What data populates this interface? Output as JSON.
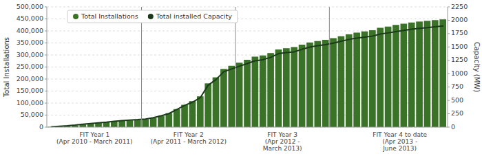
{
  "chart_data": {
    "type": "bar",
    "categories": [
      null,
      null,
      null,
      null,
      null,
      null,
      null,
      null,
      null,
      null,
      null,
      null,
      null,
      null,
      null,
      null,
      null,
      null,
      null,
      null,
      null,
      null,
      null,
      null,
      null,
      null,
      null,
      null,
      null,
      null,
      null,
      null,
      null,
      null,
      null,
      null,
      null,
      null,
      null,
      null,
      null,
      null,
      null,
      null,
      null,
      null,
      null,
      null,
      null,
      null,
      null
    ],
    "series": [
      {
        "name": "Total Installations",
        "type": "bar",
        "color": "#3a7228",
        "values": [
          1500,
          3000,
          5000,
          7500,
          11000,
          14000,
          17000,
          20000,
          23000,
          26000,
          28000,
          30000,
          33000,
          39000,
          47000,
          58000,
          75000,
          93000,
          108000,
          128000,
          182000,
          207000,
          242000,
          255000,
          268000,
          280000,
          293000,
          298000,
          308000,
          323000,
          328000,
          333000,
          343000,
          352000,
          358000,
          363000,
          370000,
          378000,
          386000,
          393000,
          398000,
          403000,
          413000,
          418000,
          425000,
          430000,
          435000,
          439000,
          442000,
          445000,
          448000
        ]
      },
      {
        "name": "Total installed Capacity",
        "type": "line",
        "color": "#1a3a1a",
        "axis": "y2",
        "values": [
          8,
          16,
          25,
          38,
          55,
          68,
          80,
          93,
          110,
          123,
          132,
          140,
          152,
          178,
          212,
          254,
          330,
          406,
          466,
          550,
          783,
          889,
          1036,
          1088,
          1139,
          1190,
          1240,
          1261,
          1307,
          1375,
          1395,
          1409,
          1455,
          1497,
          1523,
          1544,
          1573,
          1608,
          1641,
          1666,
          1684,
          1702,
          1742,
          1763,
          1788,
          1810,
          1831,
          1849,
          1861,
          1878,
          1892
        ]
      }
    ],
    "ylabel": "Total Installations",
    "y2label": "Capacity (MW)",
    "ylim": [
      0,
      500000
    ],
    "yticks": [
      0,
      {
        "value": 50000,
        "label": "50,000"
      },
      {
        "value": 100000,
        "label": "100,000"
      },
      {
        "value": 150000,
        "label": "150,000"
      },
      {
        "value": 200000,
        "label": "200,000"
      },
      {
        "value": 250000,
        "label": "250,000"
      },
      {
        "value": 300000,
        "label": "300,000"
      },
      {
        "value": 350000,
        "label": "350,000"
      },
      {
        "value": 400000,
        "label": "400,000"
      },
      {
        "value": 450000,
        "label": "450,000"
      },
      {
        "value": 500000,
        "label": "500,000"
      }
    ],
    "y2lim": [
      0,
      2250
    ],
    "y2ticks": [
      0,
      250,
      500,
      750,
      1000,
      1250,
      1500,
      1750,
      2000,
      2250
    ],
    "dividers": [
      11.5,
      23.5,
      35.5
    ],
    "annotations": [
      {
        "text": "FIT Year 1\n(Apr 2010 - March 2011)",
        "x": 5.5
      },
      {
        "text": "FIT Year 2\n(Apr 2011 - March 2012)",
        "x": 17.5
      },
      {
        "text": "FIT Year 3\n(Apr 2012 -\nMarch 2013)",
        "x": 29.5
      },
      {
        "text": "FIT Year 4 to date\n(Apr 2013 -\nJune 2013)",
        "x": 44.5
      }
    ],
    "grid": true,
    "legend": "upper left",
    "tick_labels": "y"
  }
}
